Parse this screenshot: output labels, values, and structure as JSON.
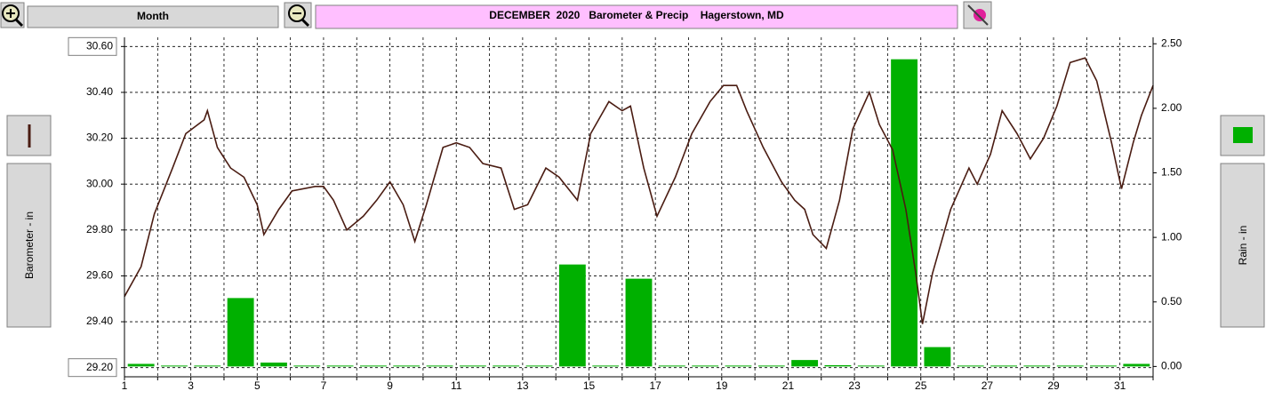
{
  "ui": {
    "period_button": "Month"
  },
  "chart_data": {
    "type": "combo",
    "title": "DECEMBER  2020   Barometer & Precip    Hagerstown, MD",
    "y_label": "Barometer - in",
    "y2_label": "Rain - in",
    "xlim": [
      1,
      32
    ],
    "xticks": [
      1,
      3,
      5,
      7,
      9,
      11,
      13,
      15,
      17,
      19,
      21,
      23,
      25,
      27,
      29,
      31
    ],
    "xminorticks": [
      2,
      4,
      6,
      8,
      10,
      12,
      14,
      16,
      18,
      20,
      22,
      24,
      26,
      28,
      30,
      32
    ],
    "ylim": [
      29.16,
      30.64
    ],
    "yticks": [
      {
        "value": 29.2,
        "label": "29.20"
      },
      {
        "value": 29.4,
        "label": "29.40"
      },
      {
        "value": 29.6,
        "label": "29.60"
      },
      {
        "value": 29.8,
        "label": "29.80"
      },
      {
        "value": 30.0,
        "label": "30.00"
      },
      {
        "value": 30.2,
        "label": "30.20"
      },
      {
        "value": 30.4,
        "label": "30.40"
      },
      {
        "value": 30.6,
        "label": "30.60"
      }
    ],
    "y2lim": [
      -0.08,
      2.55
    ],
    "y2ticks": [
      {
        "value": 0,
        "label": "0.00"
      },
      {
        "value": 0.5,
        "label": "0.50"
      },
      {
        "value": 1,
        "label": "1.00"
      },
      {
        "value": 1.5,
        "label": "1.50"
      },
      {
        "value": 2,
        "label": "2.00"
      },
      {
        "value": 2.5,
        "label": "2.50"
      }
    ],
    "grid": true,
    "series": [
      {
        "type": "line",
        "color": "#4a1c12",
        "x": [
          1.0,
          1.5,
          1.9,
          2.45,
          2.85,
          3.4,
          3.5,
          3.8,
          4.2,
          4.6,
          5.0,
          5.2,
          5.65,
          6.05,
          6.75,
          7.0,
          7.3,
          7.7,
          8.2,
          8.6,
          9.0,
          9.4,
          9.75,
          10.1,
          10.6,
          11.0,
          11.4,
          11.8,
          12.35,
          12.75,
          13.15,
          13.7,
          14.1,
          14.65,
          15.05,
          15.6,
          16.0,
          16.25,
          16.65,
          17.05,
          17.6,
          18.1,
          18.65,
          19.05,
          19.45,
          19.75,
          20.25,
          20.8,
          21.2,
          21.5,
          21.75,
          22.15,
          22.55,
          22.95,
          23.45,
          23.75,
          24.15,
          24.55,
          24.85,
          25.05,
          25.35,
          25.9,
          26.45,
          26.7,
          27.1,
          27.45,
          27.9,
          28.3,
          28.7,
          29.1,
          29.5,
          29.95,
          30.3,
          30.75,
          31.05,
          31.4,
          31.65,
          32.0
        ],
        "values": [
          29.51,
          29.64,
          29.87,
          30.07,
          30.22,
          30.28,
          30.32,
          30.16,
          30.07,
          30.03,
          29.91,
          29.78,
          29.89,
          29.97,
          29.99,
          29.99,
          29.93,
          29.8,
          29.86,
          29.93,
          30.01,
          29.91,
          29.75,
          29.91,
          30.16,
          30.18,
          30.16,
          30.09,
          30.07,
          29.89,
          29.91,
          30.07,
          30.03,
          29.93,
          30.22,
          30.36,
          30.32,
          30.34,
          30.07,
          29.86,
          30.03,
          30.22,
          30.36,
          30.43,
          30.43,
          30.32,
          30.16,
          30.01,
          29.93,
          29.89,
          29.78,
          29.72,
          29.93,
          30.24,
          30.4,
          30.26,
          30.15,
          29.89,
          29.61,
          29.39,
          29.61,
          29.89,
          30.07,
          30.0,
          30.13,
          30.32,
          30.22,
          30.11,
          30.2,
          30.34,
          30.53,
          30.55,
          30.45,
          30.18,
          29.98,
          30.18,
          30.3,
          30.43
        ]
      },
      {
        "type": "bar",
        "axis": "y2",
        "color": "#00b000",
        "x": [
          1,
          2,
          3,
          4,
          5,
          6,
          7,
          8,
          9,
          10,
          11,
          12,
          13,
          14,
          15,
          16,
          17,
          18,
          19,
          20,
          21,
          22,
          23,
          24,
          25,
          26,
          27,
          28,
          29,
          30,
          31
        ],
        "values": [
          0.02,
          0,
          0,
          0.53,
          0.03,
          0,
          0,
          0,
          0,
          0,
          0,
          0,
          0,
          0.79,
          0,
          0.68,
          0,
          0,
          0,
          0,
          0.05,
          0.01,
          0,
          2.38,
          0.15,
          0,
          0,
          0,
          0,
          0,
          0.02
        ]
      }
    ]
  }
}
